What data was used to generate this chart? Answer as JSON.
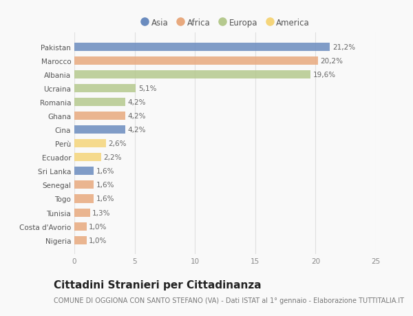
{
  "countries": [
    "Pakistan",
    "Marocco",
    "Albania",
    "Ucraina",
    "Romania",
    "Ghana",
    "Cina",
    "Perù",
    "Ecuador",
    "Sri Lanka",
    "Senegal",
    "Togo",
    "Tunisia",
    "Costa d'Avorio",
    "Nigeria"
  ],
  "values": [
    21.2,
    20.2,
    19.6,
    5.1,
    4.2,
    4.2,
    4.2,
    2.6,
    2.2,
    1.6,
    1.6,
    1.6,
    1.3,
    1.0,
    1.0
  ],
  "labels": [
    "21,2%",
    "20,2%",
    "19,6%",
    "5,1%",
    "4,2%",
    "4,2%",
    "4,2%",
    "2,6%",
    "2,2%",
    "1,6%",
    "1,6%",
    "1,6%",
    "1,3%",
    "1,0%",
    "1,0%"
  ],
  "continents": [
    "Asia",
    "Africa",
    "Europa",
    "Europa",
    "Europa",
    "Africa",
    "Asia",
    "America",
    "America",
    "Asia",
    "Africa",
    "Africa",
    "Africa",
    "Africa",
    "Africa"
  ],
  "continent_colors": {
    "Asia": "#6b8cbf",
    "Africa": "#e8a97e",
    "Europa": "#b5c98e",
    "America": "#f5d57a"
  },
  "legend_order": [
    "Asia",
    "Africa",
    "Europa",
    "America"
  ],
  "title": "Cittadini Stranieri per Cittadinanza",
  "subtitle": "COMUNE DI OGGIONA CON SANTO STEFANO (VA) - Dati ISTAT al 1° gennaio - Elaborazione TUTTITALIA.IT",
  "xlim": [
    0,
    25
  ],
  "xticks": [
    0,
    5,
    10,
    15,
    20,
    25
  ],
  "background_color": "#f9f9f9",
  "grid_color": "#e0e0e0",
  "bar_height": 0.6,
  "title_fontsize": 11,
  "subtitle_fontsize": 7,
  "label_fontsize": 7.5,
  "tick_fontsize": 7.5,
  "legend_fontsize": 8.5
}
